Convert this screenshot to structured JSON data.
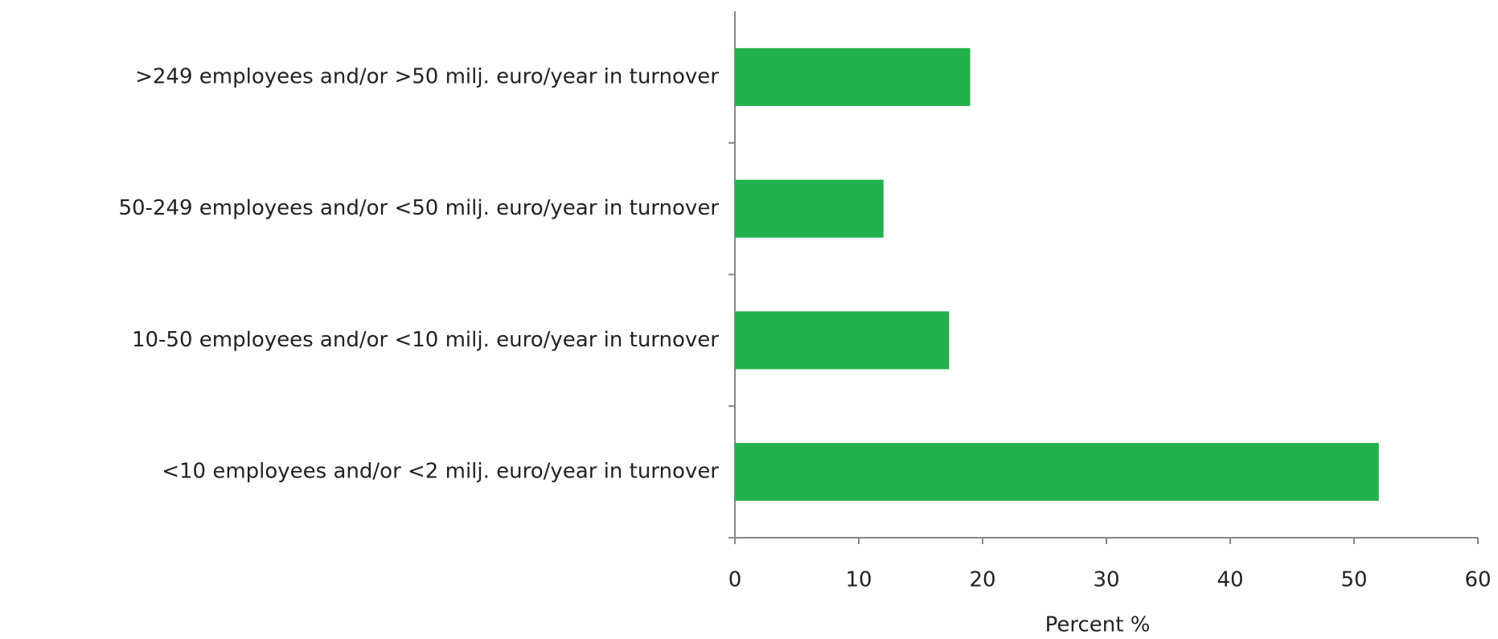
{
  "chart_data": {
    "type": "bar",
    "orientation": "horizontal",
    "categories": [
      ">249 employees and/or >50 milj. euro/year in turnover",
      "50-249 employees and/or <50 milj. euro/year in turnover",
      "10-50 employees and/or <10 milj. euro/year in turnover",
      "<10 employees and/or <2 milj. euro/year in turnover"
    ],
    "values": [
      19,
      12,
      17.3,
      52
    ],
    "color": "#22b14c",
    "xlim": [
      0,
      60
    ],
    "xticks": [
      0,
      10,
      20,
      30,
      40,
      50,
      60
    ],
    "xlabel": "Percent %",
    "grid": false
  }
}
